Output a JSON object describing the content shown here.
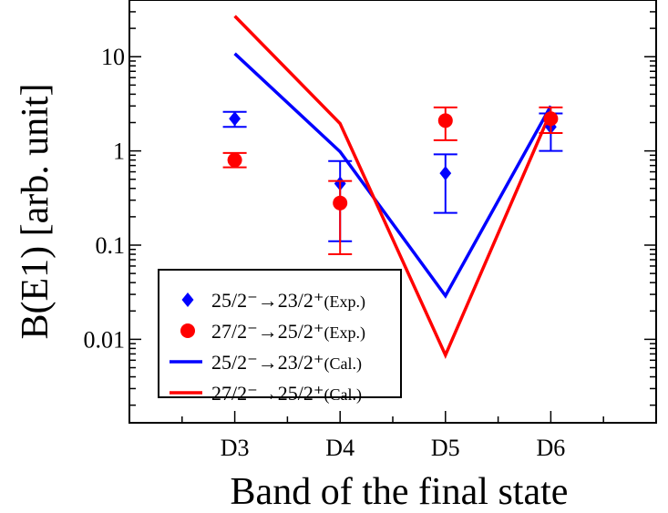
{
  "chart_data": {
    "type": "line",
    "title": "",
    "xlabel": "Band of the final state",
    "ylabel": "B(E1) [arb. unit]",
    "yscale": "log",
    "ylim": [
      0.0013,
      40
    ],
    "xlim": [
      2,
      7
    ],
    "categories": [
      "D3",
      "D4",
      "D5",
      "D6"
    ],
    "y_ticks": [
      {
        "value": 10,
        "label": "10"
      },
      {
        "value": 1,
        "label": "1"
      },
      {
        "value": 0.1,
        "label": "0.1"
      },
      {
        "value": 0.01,
        "label": "0.01"
      }
    ],
    "grid": false,
    "legend_position": "bottom-left",
    "series": [
      {
        "name": "25/2⁻→23/2⁺(Exp.)",
        "kind": "points-with-errorbars",
        "marker": "diamond",
        "color": "#0000ff",
        "values": [
          2.2,
          0.45,
          0.58,
          1.8
        ],
        "err_low": [
          1.8,
          0.11,
          0.22,
          1.0
        ],
        "err_high": [
          2.6,
          0.78,
          0.92,
          2.5
        ]
      },
      {
        "name": "27/2⁻→25/2⁺(Exp.)",
        "kind": "points-with-errorbars",
        "marker": "circle",
        "color": "#ff0000",
        "values": [
          0.8,
          0.28,
          2.1,
          2.2
        ],
        "err_low": [
          0.67,
          0.08,
          1.3,
          1.55
        ],
        "err_high": [
          0.95,
          0.48,
          2.9,
          2.9
        ]
      },
      {
        "name": "25/2⁻→23/2⁺(Cal.)",
        "kind": "line",
        "color": "#0000ff",
        "values": [
          10.8,
          0.98,
          0.029,
          3.0
        ]
      },
      {
        "name": "27/2⁻→25/2⁺(Cal.)",
        "kind": "line",
        "color": "#ff0000",
        "values": [
          27.0,
          1.95,
          0.0068,
          2.6
        ]
      }
    ],
    "legend": [
      {
        "label_main": "25/2⁻→23/2⁺",
        "label_suffix": "(Exp.)",
        "symbol": "diamond",
        "color": "#0000ff"
      },
      {
        "label_main": "27/2⁻→25/2⁺",
        "label_suffix": "(Exp.)",
        "symbol": "circle",
        "color": "#ff0000"
      },
      {
        "label_main": "25/2⁻→23/2⁺",
        "label_suffix": "(Cal.)",
        "symbol": "line",
        "color": "#0000ff"
      },
      {
        "label_main": "27/2⁻→25/2⁺",
        "label_suffix": "(Cal.)",
        "symbol": "line",
        "color": "#ff0000"
      }
    ]
  }
}
